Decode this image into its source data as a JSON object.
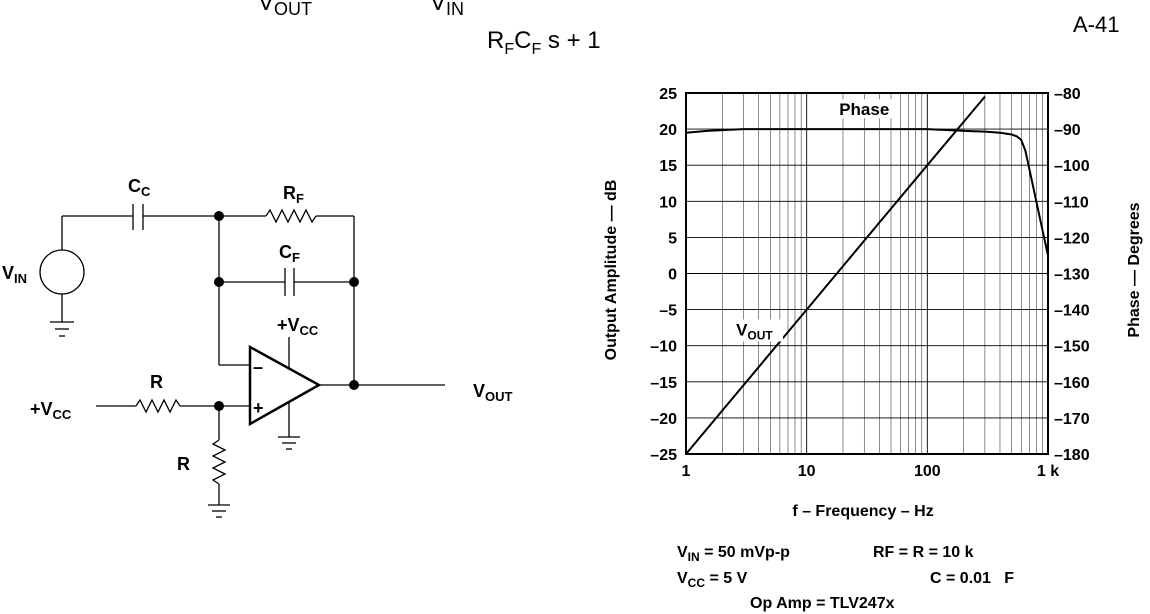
{
  "equation": {
    "vout_main": "V",
    "vout_sub": "OUT",
    "vin_main": "V",
    "vin_sub": "IN",
    "denominator_r": "R",
    "denominator_r_sub": "F",
    "denominator_c": "C",
    "denominator_c_sub": "F",
    "denominator_rest": "s + 1",
    "eq_number": "A-41"
  },
  "circuit": {
    "vin_main": "V",
    "vin_sub": "IN",
    "cc_main": "C",
    "cc_sub": "C",
    "rf_main": "R",
    "rf_sub": "F",
    "cf_main": "C",
    "cf_sub": "F",
    "vcc_top_main": "+V",
    "vcc_top_sub": "CC",
    "vcc_left_main": "+V",
    "vcc_left_sub": "CC",
    "r_top": "R",
    "r_bottom": "R",
    "minus": "–",
    "plus": "+",
    "vout_main": "V",
    "vout_sub": "OUT"
  },
  "conditions": {
    "vin_main": "V",
    "vin_sub": "IN",
    "vin_value": " = 50 mVp-p",
    "rf": "RF = R = 10 k",
    "vcc_main": "V",
    "vcc_sub": "CC",
    "vcc_value": " = 5 V",
    "c": "C = 0.01   F",
    "opamp": "Op Amp = TLV247x"
  },
  "chart_data": {
    "type": "line",
    "x_scale": "log",
    "xlim": [
      1,
      1000
    ],
    "xticks": [
      1,
      10,
      100,
      1000
    ],
    "xtick_labels": [
      "1",
      "10",
      "100",
      "1 k"
    ],
    "xlabel": "f – Frequency – Hz",
    "ylabel_left": "Output Amplitude — dB",
    "ylim_left": [
      -25,
      25
    ],
    "yticks_left": [
      25,
      20,
      15,
      10,
      5,
      0,
      -5,
      -10,
      -15,
      -20,
      -25
    ],
    "ytick_labels_left": [
      "25",
      "20",
      "15",
      "10",
      "5",
      "0",
      "–5",
      "–10",
      "–15",
      "–20",
      "–25"
    ],
    "ylabel_right": "Phase — Degrees",
    "ylim_right": [
      -180,
      -80
    ],
    "yticks_right": [
      -80,
      -90,
      -100,
      -110,
      -120,
      -130,
      -140,
      -150,
      -160,
      -170,
      -180
    ],
    "ytick_labels_right": [
      "–80",
      "–90",
      "–100",
      "–110",
      "–120",
      "–130",
      "–140",
      "–150",
      "–160",
      "–170",
      "–180"
    ],
    "grid": true,
    "series": [
      {
        "name": "Phase",
        "axis": "right",
        "x": [
          1,
          1.5,
          3,
          10,
          30,
          100,
          200,
          300,
          400,
          500,
          550,
          600,
          650,
          700,
          800,
          900,
          1000
        ],
        "y": [
          -91,
          -90.5,
          -90,
          -90,
          -90,
          -90,
          -90.5,
          -90.7,
          -91,
          -91.5,
          -92,
          -93,
          -96,
          -101,
          -110,
          -118,
          -125
        ]
      },
      {
        "name": "VOUT",
        "axis": "left",
        "x": [
          1,
          10,
          100,
          300
        ],
        "y": [
          -25,
          -5,
          15,
          24.5
        ]
      }
    ],
    "annotations": [
      {
        "text": "Phase",
        "x": 30,
        "y_left": 22.2
      },
      {
        "text": "V",
        "sub": "OUT",
        "x": 2.6,
        "y_left": -8.3
      }
    ]
  }
}
